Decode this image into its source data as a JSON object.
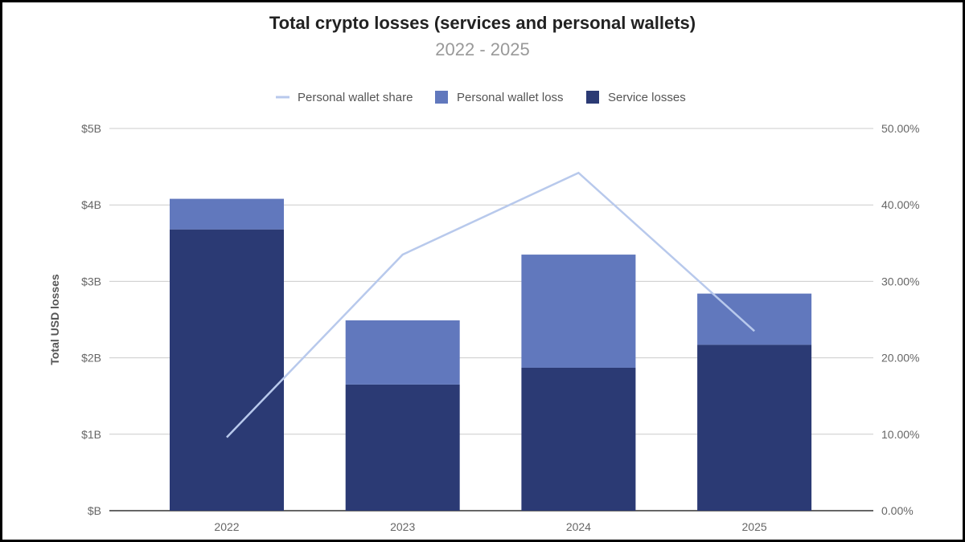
{
  "chart_data": {
    "type": "bar",
    "stacked": true,
    "title": "Total crypto losses (services and personal wallets)",
    "subtitle": "2022 - 2025",
    "xlabel": "",
    "ylabel": "Total USD losses",
    "categories": [
      "2022",
      "2023",
      "2024",
      "2025"
    ],
    "series": [
      {
        "name": "Service losses",
        "type": "bar",
        "axis": "left",
        "values": [
          3.68,
          1.65,
          1.87,
          2.17
        ],
        "color": "#2b3a74"
      },
      {
        "name": "Personal wallet loss",
        "type": "bar",
        "axis": "left",
        "values": [
          0.4,
          0.84,
          1.48,
          0.67
        ],
        "color": "#6178bd"
      },
      {
        "name": "Personal wallet share",
        "type": "line",
        "axis": "right",
        "values": [
          9.6,
          33.5,
          44.2,
          23.5
        ],
        "color": "#b8c9ec"
      }
    ],
    "ylim": [
      0,
      5
    ],
    "y_ticks": [
      "$B",
      "$1B",
      "$2B",
      "$3B",
      "$4B",
      "$5B"
    ],
    "y2lim": [
      0,
      50
    ],
    "y2_ticks": [
      "0.00%",
      "10.00%",
      "20.00%",
      "30.00%",
      "40.00%",
      "50.00%"
    ],
    "legend_order": [
      "Personal wallet share",
      "Personal wallet loss",
      "Service losses"
    ],
    "legend_position": "top",
    "grid": true
  }
}
